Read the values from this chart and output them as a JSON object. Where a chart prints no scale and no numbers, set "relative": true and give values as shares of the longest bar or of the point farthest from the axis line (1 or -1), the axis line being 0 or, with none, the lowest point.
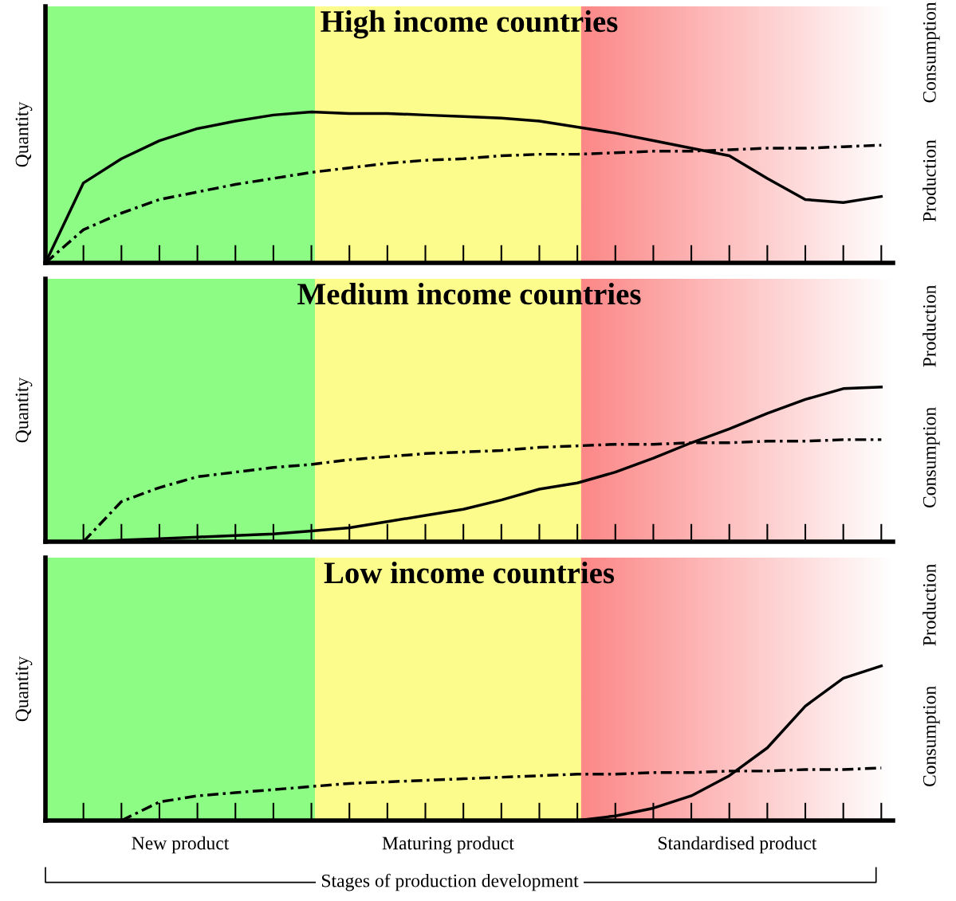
{
  "chart_data": [
    {
      "type": "line",
      "title": "High income countries",
      "ylabel": "Quantity",
      "relative": true,
      "tick_labels": false,
      "legend": "right",
      "categories": [
        null,
        null,
        null,
        null,
        null,
        null,
        null,
        null,
        null,
        null,
        null,
        null,
        null,
        null,
        null,
        null,
        null,
        null,
        null,
        null,
        null,
        null,
        null
      ],
      "series": [
        {
          "name": "Production",
          "color": "#000000",
          "line_style": "solid",
          "values": [
            0,
            0.53,
            0.69,
            0.81,
            0.89,
            0.94,
            0.98,
            1.0,
            0.99,
            0.99,
            0.98,
            0.97,
            0.96,
            0.94,
            0.9,
            0.86,
            0.81,
            0.76,
            0.71,
            0.56,
            0.42,
            0.4,
            0.44
          ]
        },
        {
          "name": "Consumption",
          "color": "#000000",
          "line_style": "dashdot",
          "values": [
            0,
            0.22,
            0.33,
            0.42,
            0.47,
            0.52,
            0.56,
            0.6,
            0.63,
            0.66,
            0.68,
            0.69,
            0.71,
            0.72,
            0.72,
            0.73,
            0.74,
            0.74,
            0.75,
            0.76,
            0.76,
            0.77,
            0.78
          ]
        }
      ]
    },
    {
      "type": "line",
      "title": "Medium income countries",
      "ylabel": "Quantity",
      "relative": true,
      "tick_labels": false,
      "legend": "right",
      "categories": [
        null,
        null,
        null,
        null,
        null,
        null,
        null,
        null,
        null,
        null,
        null,
        null,
        null,
        null,
        null,
        null,
        null,
        null,
        null,
        null,
        null,
        null,
        null
      ],
      "series": [
        {
          "name": "Production",
          "color": "#000000",
          "line_style": "solid",
          "values": [
            0,
            0,
            0.01,
            0.02,
            0.03,
            0.04,
            0.05,
            0.07,
            0.09,
            0.13,
            0.17,
            0.21,
            0.27,
            0.34,
            0.38,
            0.45,
            0.54,
            0.64,
            0.73,
            0.83,
            0.92,
            0.99,
            1.0
          ]
        },
        {
          "name": "Consumption",
          "color": "#000000",
          "line_style": "dashdot",
          "values": [
            null,
            0,
            0.26,
            0.35,
            0.42,
            0.45,
            0.48,
            0.5,
            0.53,
            0.55,
            0.57,
            0.58,
            0.59,
            0.61,
            0.62,
            0.63,
            0.63,
            0.64,
            0.64,
            0.65,
            0.65,
            0.66,
            0.66
          ]
        }
      ]
    },
    {
      "type": "line",
      "title": "Low income countries",
      "ylabel": "Quantity",
      "relative": true,
      "tick_labels": false,
      "legend": "right",
      "annotations": [
        "New product",
        "Maturing product",
        "Standardised product",
        "Stages of production development"
      ],
      "categories": [
        null,
        null,
        null,
        null,
        null,
        null,
        null,
        null,
        null,
        null,
        null,
        null,
        null,
        null,
        null,
        null,
        null,
        null,
        null,
        null,
        null,
        null,
        null
      ],
      "series": [
        {
          "name": "Production",
          "color": "#000000",
          "line_style": "solid",
          "values": [
            null,
            null,
            null,
            null,
            null,
            null,
            null,
            null,
            null,
            null,
            null,
            null,
            null,
            null,
            0,
            0.03,
            0.08,
            0.16,
            0.29,
            0.47,
            0.74,
            0.92,
            1.0
          ]
        },
        {
          "name": "Consumption",
          "color": "#000000",
          "line_style": "dashdot",
          "values": [
            null,
            null,
            0,
            0.12,
            0.16,
            0.18,
            0.2,
            0.22,
            0.24,
            0.25,
            0.26,
            0.27,
            0.28,
            0.29,
            0.3,
            0.3,
            0.31,
            0.31,
            0.32,
            0.32,
            0.33,
            0.33,
            0.34
          ]
        }
      ]
    }
  ]
}
